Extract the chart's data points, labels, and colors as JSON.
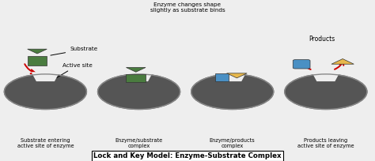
{
  "title": "Lock and Key Model: Enzyme-Substrate Complex",
  "background_color": "#eeeeee",
  "enzyme_color": "#555555",
  "substrate_color": "#4a7c3f",
  "product1_color": "#4a90c4",
  "product2_color": "#e8b84b",
  "red_arrow_color": "#cc0000",
  "label1": "Substrate entering\nactive site of enzyme",
  "label2": "Enzyme/substrate\ncomplex",
  "label3": "Enzyme/products\ncomplex",
  "label4": "Products leaving\nactive site of enzyme",
  "annotation1": "Substrate",
  "annotation2": "Active site",
  "annotation3": "Enzyme changes shape\nslightly as substrate binds",
  "annotation4": "Products",
  "positions": [
    0.12,
    0.37,
    0.62,
    0.87
  ]
}
